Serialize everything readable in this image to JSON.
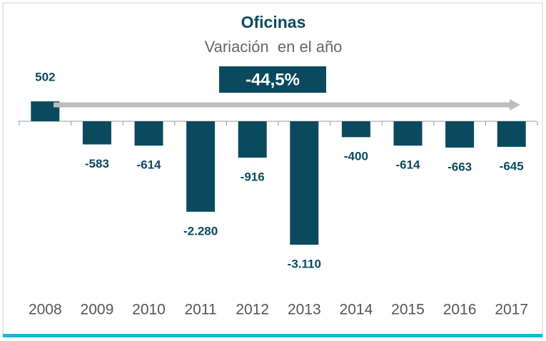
{
  "chart_data": {
    "type": "bar",
    "title": "Oficinas",
    "subtitle": "Variación  en el año",
    "annotation": "-44,5%",
    "categories": [
      "2008",
      "2009",
      "2010",
      "2011",
      "2012",
      "2013",
      "2014",
      "2015",
      "2016",
      "2017"
    ],
    "values": [
      502,
      -583,
      -614,
      -2280,
      -916,
      -3110,
      -400,
      -614,
      -663,
      -645
    ],
    "value_labels": [
      "502",
      "-583",
      "-614",
      "-2.280",
      "-916",
      "-3.110",
      "-400",
      "-614",
      "-663",
      "-645"
    ],
    "color": "#0b4a5e"
  }
}
